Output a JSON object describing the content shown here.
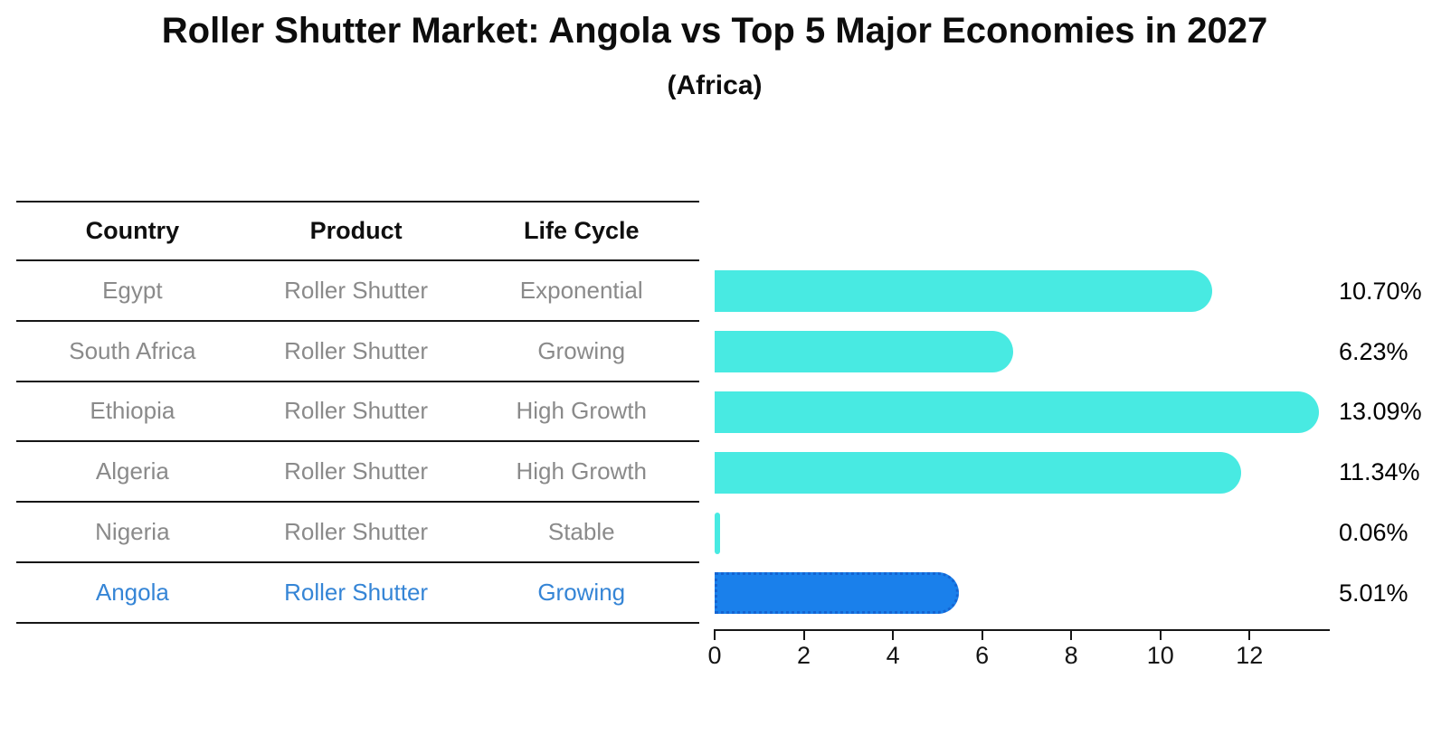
{
  "title": "Roller Shutter Market: Angola vs Top 5 Major Economies in 2027",
  "subtitle": "(Africa)",
  "table": {
    "headers": [
      "Country",
      "Product",
      "Life Cycle"
    ],
    "rows": [
      {
        "country": "Egypt",
        "product": "Roller Shutter",
        "life_cycle": "Exponential",
        "highlight": false
      },
      {
        "country": "South Africa",
        "product": "Roller Shutter",
        "life_cycle": "Growing",
        "highlight": false
      },
      {
        "country": "Ethiopia",
        "product": "Roller Shutter",
        "life_cycle": "High Growth",
        "highlight": false
      },
      {
        "country": "Algeria",
        "product": "Roller Shutter",
        "life_cycle": "High Growth",
        "highlight": false
      },
      {
        "country": "Nigeria",
        "product": "Roller Shutter",
        "life_cycle": "Stable",
        "highlight": false
      },
      {
        "country": "Angola",
        "product": "Roller Shutter",
        "life_cycle": "Growing",
        "highlight": true
      }
    ]
  },
  "chart_data": {
    "type": "bar",
    "orientation": "horizontal",
    "title": "Roller Shutter Market: Angola vs Top 5 Major Economies in 2027",
    "subtitle": "(Africa)",
    "categories": [
      "Egypt",
      "South Africa",
      "Ethiopia",
      "Algeria",
      "Nigeria",
      "Angola"
    ],
    "values": [
      10.7,
      6.23,
      13.09,
      11.34,
      0.06,
      5.01
    ],
    "value_labels": [
      "10.70%",
      "6.23%",
      "13.09%",
      "11.34%",
      "0.06%",
      "5.01%"
    ],
    "highlight_category": "Angola",
    "x_ticks": [
      "0",
      "2",
      "4",
      "6",
      "8",
      "10",
      "12"
    ],
    "xlim": [
      0,
      13.8
    ],
    "grid": false,
    "legend": "none"
  },
  "colors": {
    "bar_fill": "#48EAE2",
    "highlight_bar_fill": "#1A80EB",
    "highlight_bar_border": "#1464D2",
    "row_text": "#8A8A8A",
    "highlight_row_text": "#3585D6",
    "header_text": "#0F0F0F",
    "axis_line": "#161616",
    "value_label_text": "#000000"
  }
}
